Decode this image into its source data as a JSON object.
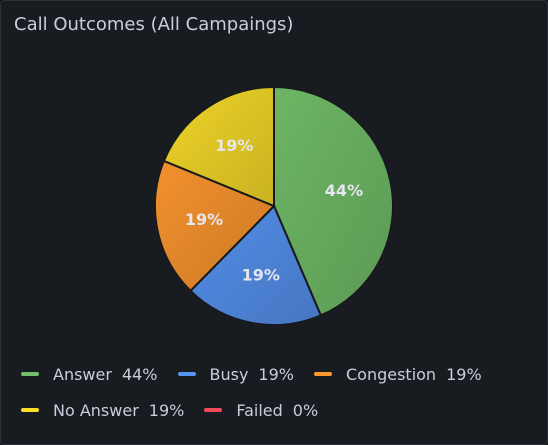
{
  "chart_data": {
    "type": "pie",
    "title": "Call Outcomes (All Campaings)",
    "categories": [
      "Answer",
      "Busy",
      "Congestion",
      "No Answer",
      "Failed"
    ],
    "values": [
      44,
      19,
      19,
      19,
      0
    ],
    "value_labels": [
      "44%",
      "19%",
      "19%",
      "19%",
      "0%"
    ],
    "colors": [
      "#73bf69",
      "#5794f2",
      "#ff9830",
      "#fade2a",
      "#f2495c"
    ]
  }
}
